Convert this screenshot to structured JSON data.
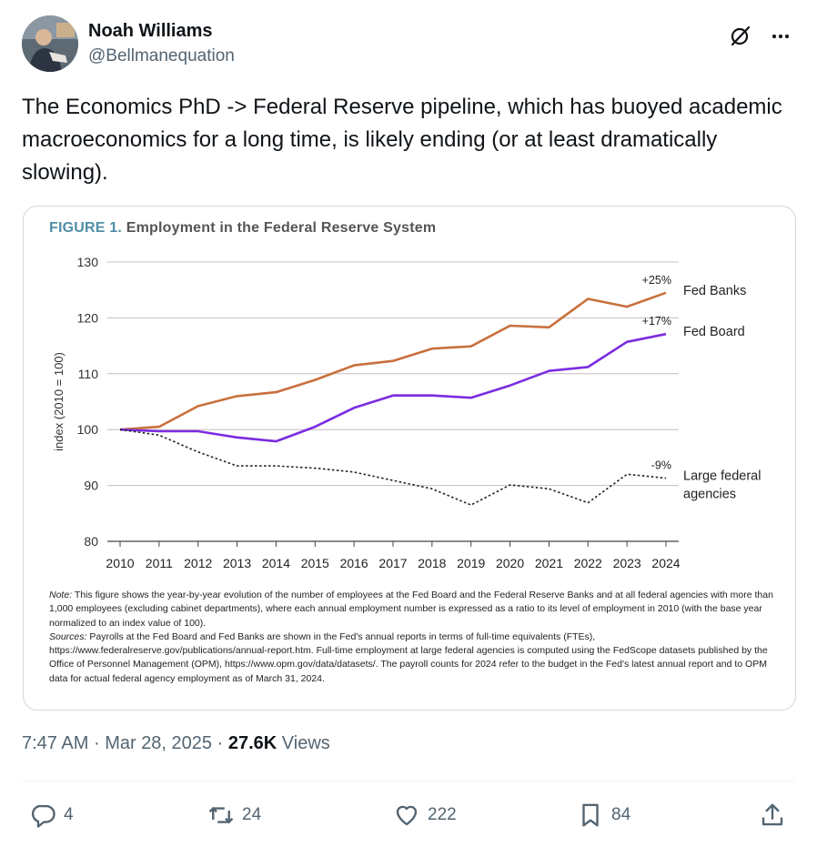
{
  "author": {
    "display_name": "Noah Williams",
    "handle": "@Bellmanequation"
  },
  "icons": {
    "avatar": "avatar",
    "grok": "grok-icon",
    "more": "more-icon",
    "reply": "reply-icon",
    "repost": "repost-icon",
    "like": "heart-icon",
    "bookmark": "bookmark-icon",
    "share": "share-icon"
  },
  "tweet": {
    "text": "The Economics PhD -> Federal Reserve pipeline, which has buoyed academic macroeconomics for a long time, is likely ending (or at least dramatically slowing)."
  },
  "figure": {
    "label": "FIGURE 1.",
    "title": "Employment in the Federal Reserve System",
    "note_label": "Note:",
    "note": "This figure shows the year-by-year evolution of the number of employees at the Fed Board and the Federal Reserve Banks and at all federal agencies with more than 1,000 employees (excluding cabinet departments), where each annual employment number is expressed as a ratio to its level of employment in 2010 (with the base year normalized to an index value of 100).",
    "sources_label": "Sources:",
    "sources": "Payrolls at the Fed Board and Fed Banks are shown in the Fed's annual reports in terms of full-time equivalents (FTEs), https://www.federalreserve.gov/publications/annual-report.htm. Full-time employment at large federal agencies is computed using the FedScope datasets published by the Office of Personnel Management (OPM), https://www.opm.gov/data/datasets/. The payroll counts for 2024 refer to the budget in the Fed's latest annual report and to OPM data for actual federal agency employment as of March 31, 2024."
  },
  "chart_data": {
    "type": "line",
    "title": "Employment in the Federal Reserve System",
    "xlabel": "",
    "ylabel": "index (2010 = 100)",
    "x": [
      2010,
      2011,
      2012,
      2013,
      2014,
      2015,
      2016,
      2017,
      2018,
      2019,
      2020,
      2021,
      2022,
      2023,
      2024
    ],
    "ylim": [
      80,
      130
    ],
    "yticks": [
      80,
      90,
      100,
      110,
      120,
      130
    ],
    "grid": true,
    "series": [
      {
        "name": "Fed Banks",
        "end_label": "+25%",
        "color": "#c8703c",
        "style": "solid",
        "values": [
          100,
          100.5,
          104.2,
          106,
          106.7,
          108.9,
          111.5,
          112.3,
          114.5,
          114.9,
          118.6,
          118.3,
          123.4,
          122,
          124.5
        ]
      },
      {
        "name": "Fed Board",
        "end_label": "+17%",
        "color": "#7b2ce0",
        "style": "solid",
        "values": [
          100,
          99.7,
          99.7,
          98.6,
          97.9,
          100.5,
          103.9,
          106.1,
          106.1,
          105.7,
          107.9,
          110.5,
          111.2,
          115.7,
          117.1
        ]
      },
      {
        "name": "Large federal agencies",
        "label_lines": [
          "Large federal",
          "agencies"
        ],
        "end_label": "-9%",
        "color": "#222222",
        "style": "dotted",
        "values": [
          100,
          99,
          96,
          93.5,
          93.5,
          93.1,
          92.4,
          90.9,
          89.4,
          86.5,
          90.1,
          89.4,
          86.9,
          92,
          91.3
        ]
      }
    ]
  },
  "stats": {
    "time": "7:47 AM",
    "separator": "·",
    "date": "Mar 28, 2025",
    "views_count": "27.6K",
    "views_label": "Views"
  },
  "actions": {
    "replies": "4",
    "reposts": "24",
    "likes": "222",
    "bookmarks": "84"
  }
}
